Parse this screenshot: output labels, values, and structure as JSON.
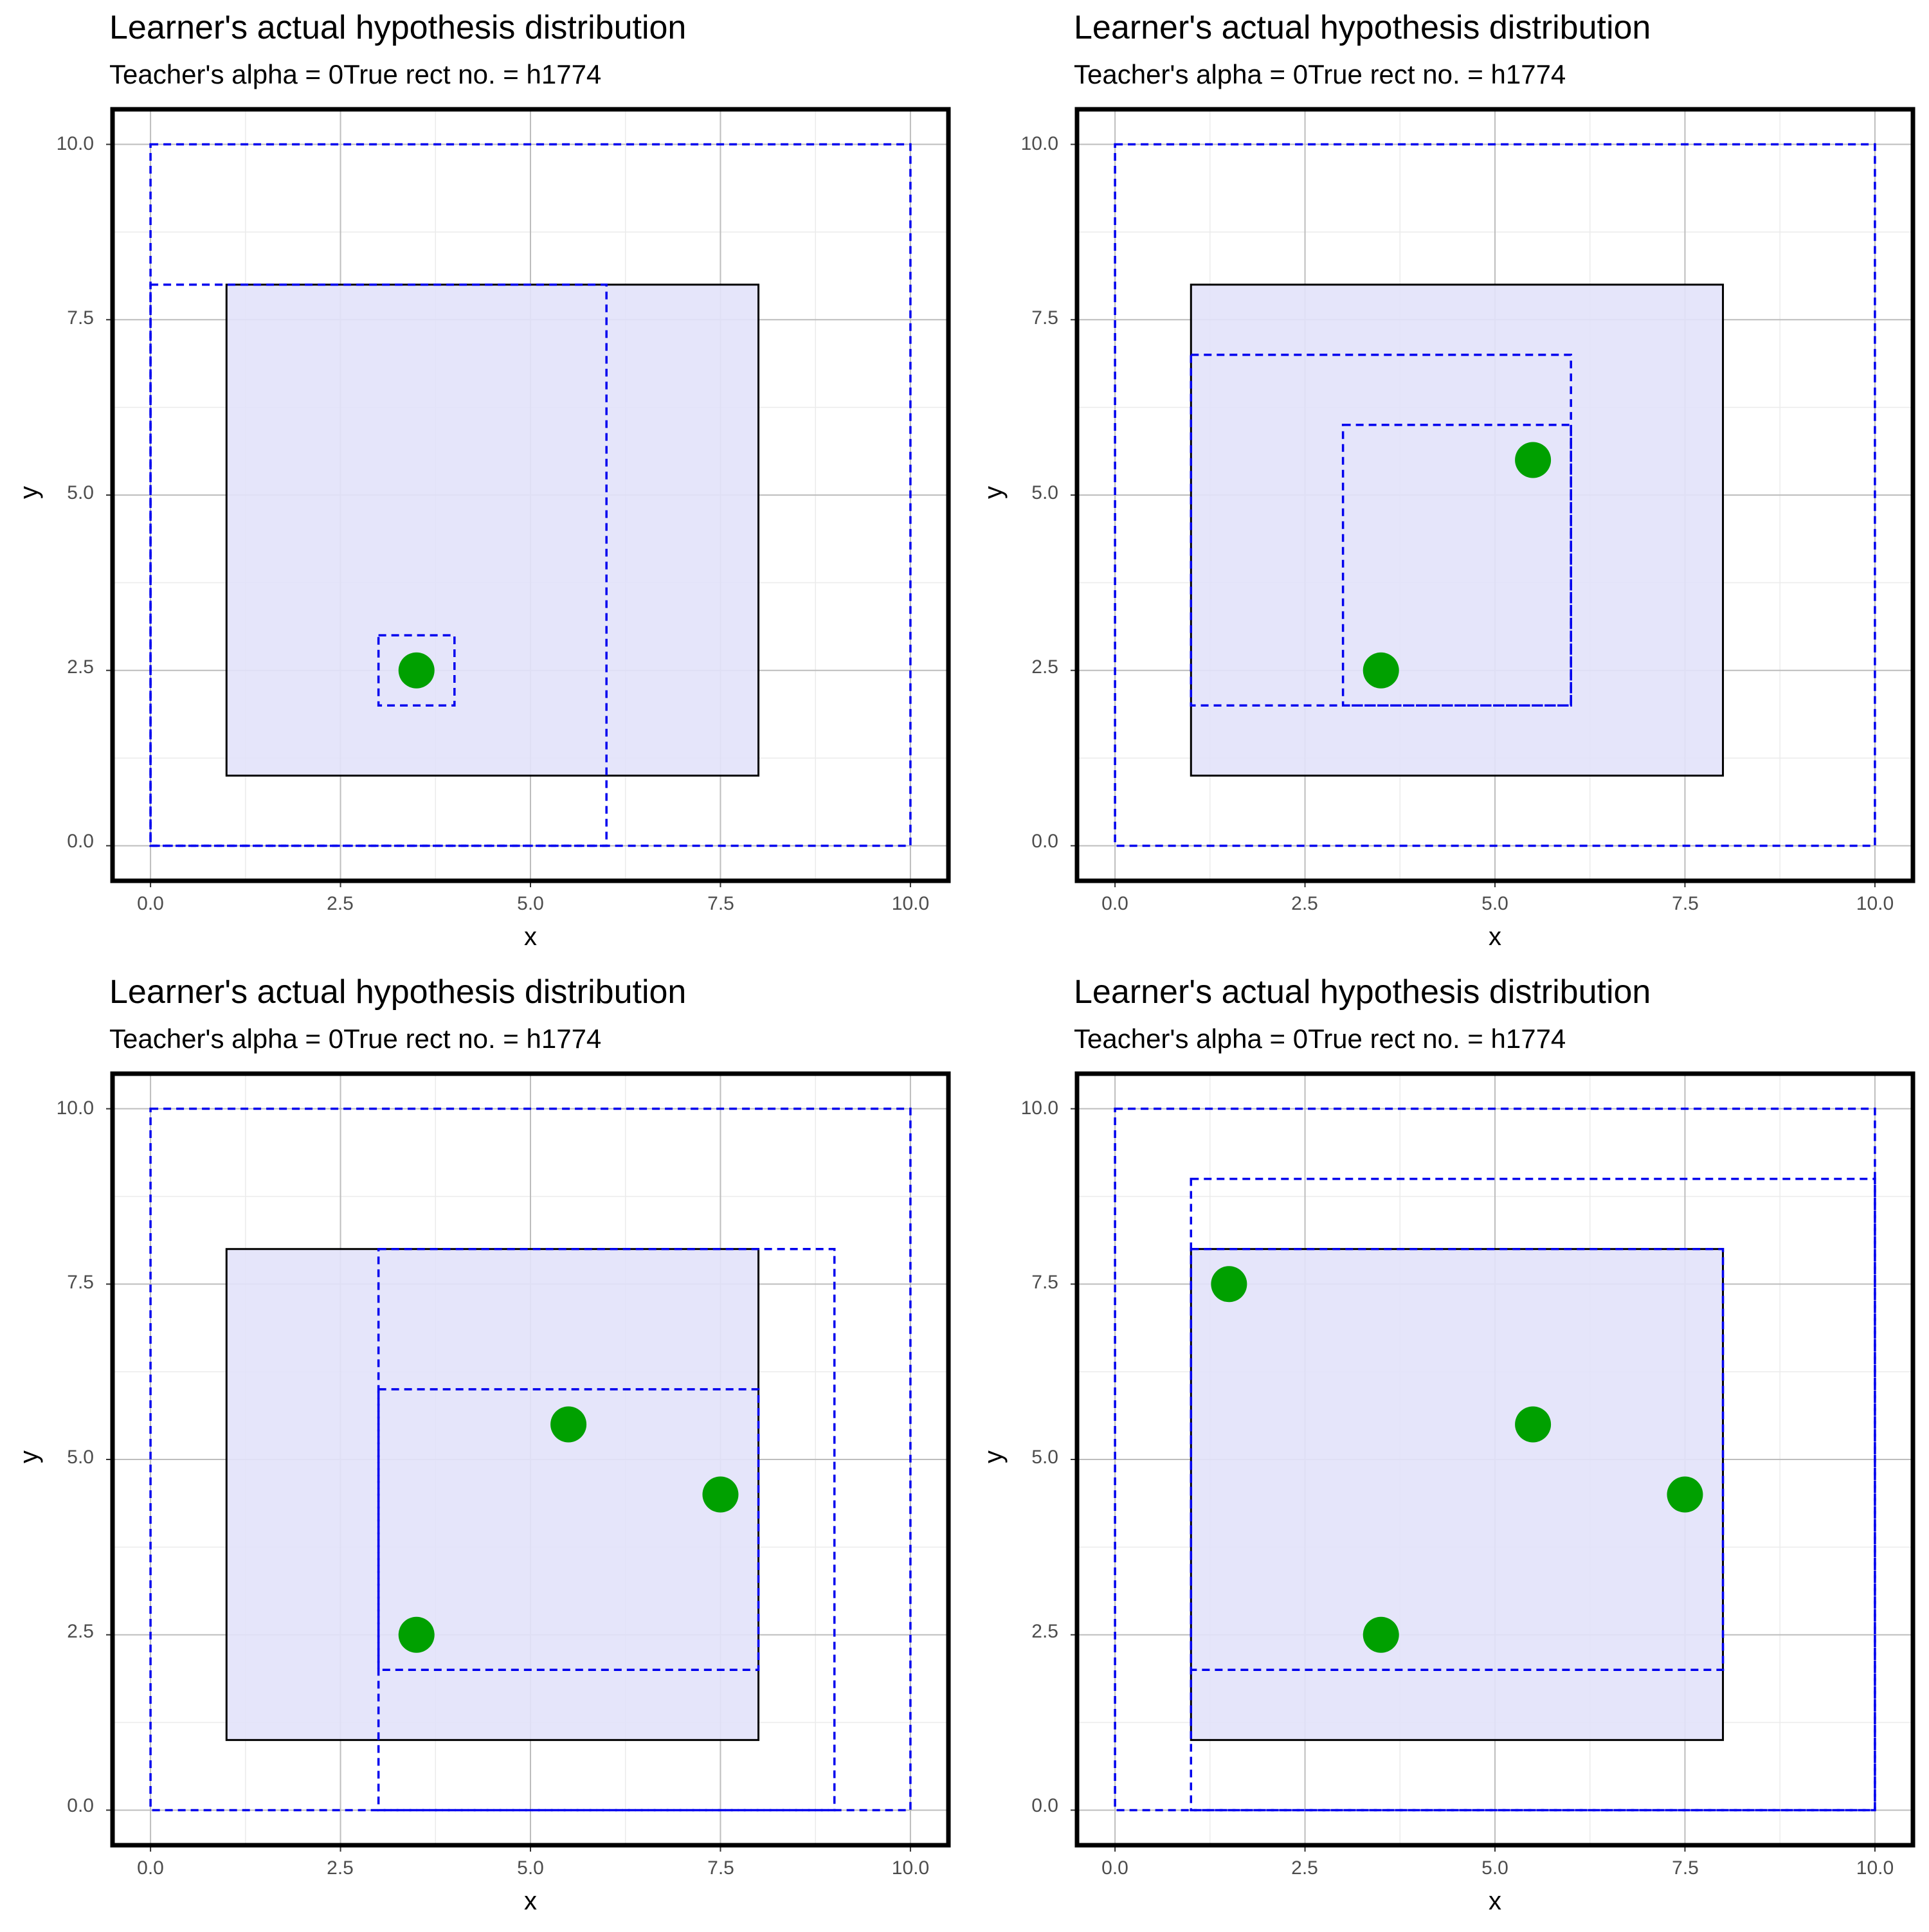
{
  "colors": {
    "true_rect_fill": "#e2e2fa",
    "true_rect_stroke": "#000000",
    "hypothesis_stroke": "#0000ee",
    "point_fill": "#00a000",
    "grid_major": "#bdbdbd",
    "grid_minor": "#ebebeb",
    "panel_border": "#000000",
    "tick_label": "#4d4d4d"
  },
  "chart_data": [
    {
      "type": "scatter",
      "title": "Learner's actual hypothesis distribution",
      "subtitle": "Teacher's alpha = 0True rect no. = h1774",
      "xlabel": "x",
      "ylabel": "y",
      "xlim": [
        -0.5,
        10.5
      ],
      "ylim": [
        -0.5,
        10.5
      ],
      "x_ticks": [
        "0.0",
        "2.5",
        "5.0",
        "7.5",
        "10.0"
      ],
      "y_ticks": [
        "0.0",
        "2.5",
        "5.0",
        "7.5",
        "10.0"
      ],
      "grid": true,
      "true_rectangle": {
        "x1": 1,
        "y1": 1,
        "x2": 8,
        "y2": 8
      },
      "hypothesis_rectangles": [
        {
          "x1": 0,
          "y1": 0,
          "x2": 10,
          "y2": 10
        },
        {
          "x1": 0,
          "y1": 0,
          "x2": 6,
          "y2": 8
        },
        {
          "x1": 3,
          "y1": 2,
          "x2": 4,
          "y2": 3
        }
      ],
      "points": [
        {
          "x": 3.5,
          "y": 2.5
        }
      ]
    },
    {
      "type": "scatter",
      "title": "Learner's actual hypothesis distribution",
      "subtitle": "Teacher's alpha = 0True rect no. = h1774",
      "xlabel": "x",
      "ylabel": "y",
      "xlim": [
        -0.5,
        10.5
      ],
      "ylim": [
        -0.5,
        10.5
      ],
      "x_ticks": [
        "0.0",
        "2.5",
        "5.0",
        "7.5",
        "10.0"
      ],
      "y_ticks": [
        "0.0",
        "2.5",
        "5.0",
        "7.5",
        "10.0"
      ],
      "grid": true,
      "true_rectangle": {
        "x1": 1,
        "y1": 1,
        "x2": 8,
        "y2": 8
      },
      "hypothesis_rectangles": [
        {
          "x1": 0,
          "y1": 0,
          "x2": 10,
          "y2": 10
        },
        {
          "x1": 1,
          "y1": 2,
          "x2": 6,
          "y2": 7
        },
        {
          "x1": 3,
          "y1": 2,
          "x2": 6,
          "y2": 6
        }
      ],
      "points": [
        {
          "x": 3.5,
          "y": 2.5
        },
        {
          "x": 5.5,
          "y": 5.5
        }
      ]
    },
    {
      "type": "scatter",
      "title": "Learner's actual hypothesis distribution",
      "subtitle": "Teacher's alpha = 0True rect no. = h1774",
      "xlabel": "x",
      "ylabel": "y",
      "xlim": [
        -0.5,
        10.5
      ],
      "ylim": [
        -0.5,
        10.5
      ],
      "x_ticks": [
        "0.0",
        "2.5",
        "5.0",
        "7.5",
        "10.0"
      ],
      "y_ticks": [
        "0.0",
        "2.5",
        "5.0",
        "7.5",
        "10.0"
      ],
      "grid": true,
      "true_rectangle": {
        "x1": 1,
        "y1": 1,
        "x2": 8,
        "y2": 8
      },
      "hypothesis_rectangles": [
        {
          "x1": 0,
          "y1": 0,
          "x2": 10,
          "y2": 10
        },
        {
          "x1": 3,
          "y1": 0,
          "x2": 9,
          "y2": 8
        },
        {
          "x1": 3,
          "y1": 2,
          "x2": 8,
          "y2": 6
        }
      ],
      "points": [
        {
          "x": 3.5,
          "y": 2.5
        },
        {
          "x": 5.5,
          "y": 5.5
        },
        {
          "x": 7.5,
          "y": 4.5
        }
      ]
    },
    {
      "type": "scatter",
      "title": "Learner's actual hypothesis distribution",
      "subtitle": "Teacher's alpha = 0True rect no. = h1774",
      "xlabel": "x",
      "ylabel": "y",
      "xlim": [
        -0.5,
        10.5
      ],
      "ylim": [
        -0.5,
        10.5
      ],
      "x_ticks": [
        "0.0",
        "2.5",
        "5.0",
        "7.5",
        "10.0"
      ],
      "y_ticks": [
        "0.0",
        "2.5",
        "5.0",
        "7.5",
        "10.0"
      ],
      "grid": true,
      "true_rectangle": {
        "x1": 1,
        "y1": 1,
        "x2": 8,
        "y2": 8
      },
      "hypothesis_rectangles": [
        {
          "x1": 0,
          "y1": 0,
          "x2": 10,
          "y2": 10
        },
        {
          "x1": 1,
          "y1": 0,
          "x2": 10,
          "y2": 9
        },
        {
          "x1": 1,
          "y1": 2,
          "x2": 8,
          "y2": 8
        }
      ],
      "points": [
        {
          "x": 1.5,
          "y": 7.5
        },
        {
          "x": 3.5,
          "y": 2.5
        },
        {
          "x": 5.5,
          "y": 5.5
        },
        {
          "x": 7.5,
          "y": 4.5
        }
      ]
    }
  ]
}
